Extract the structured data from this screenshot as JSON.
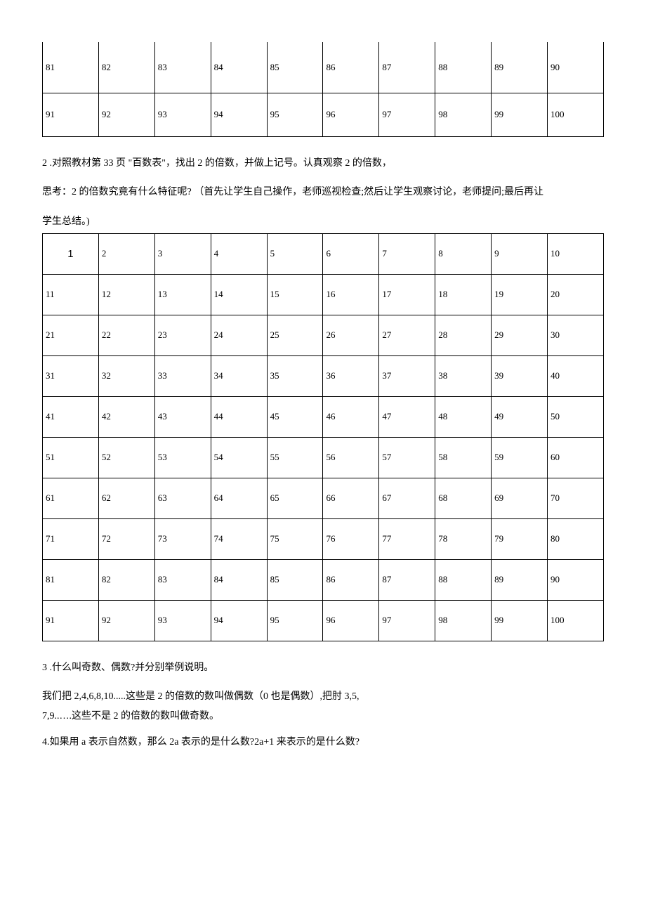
{
  "partial_table": {
    "rows": [
      [
        "81",
        "82",
        "83",
        "84",
        "85",
        "86",
        "87",
        "88",
        "89",
        "90"
      ],
      [
        "91",
        "92",
        "93",
        "94",
        "95",
        "96",
        "97",
        "98",
        "99",
        "100"
      ]
    ]
  },
  "text": {
    "p1": "2 .对照教材第 33 页 \"百数表\"，找出 2 的倍数，并做上记号。认真观察 2 的倍数，",
    "p2": "思考：2 的倍数究竟有什么特征呢? （首先让学生自己操作，老师巡视检查;然后让学生观察讨论，老师提问;最后再让",
    "p3": "学生总结。)",
    "q3_title": "3 .什么叫奇数、偶数?并分别举例说明。",
    "q3_line1": "我们把 2,4,6,8,10.....这些是 2 的倍数的数叫做偶数（0 也是偶数）,把肘 3,5,",
    "q3_line2": "7,9..….这些不是 2 的倍数的数叫做奇数。",
    "q4": "4.如果用 a 表示自然数，那么 2a 表示的是什么数?2a+1 来表示的是什么数?"
  },
  "full_table": {
    "rows": [
      [
        "1",
        "2",
        "3",
        "4",
        "5",
        "6",
        "7",
        "8",
        "9",
        "10"
      ],
      [
        "11",
        "12",
        "13",
        "14",
        "15",
        "16",
        "17",
        "18",
        "19",
        "20"
      ],
      [
        "21",
        "22",
        "23",
        "24",
        "25",
        "26",
        "27",
        "28",
        "29",
        "30"
      ],
      [
        "31",
        "32",
        "33",
        "34",
        "35",
        "36",
        "37",
        "38",
        "39",
        "40"
      ],
      [
        "41",
        "42",
        "43",
        "44",
        "45",
        "46",
        "47",
        "48",
        "49",
        "50"
      ],
      [
        "51",
        "52",
        "53",
        "54",
        "55",
        "56",
        "57",
        "58",
        "59",
        "60"
      ],
      [
        "61",
        "62",
        "63",
        "64",
        "65",
        "66",
        "67",
        "68",
        "69",
        "70"
      ],
      [
        "71",
        "72",
        "73",
        "74",
        "75",
        "76",
        "77",
        "78",
        "79",
        "80"
      ],
      [
        "81",
        "82",
        "83",
        "84",
        "85",
        "86",
        "87",
        "88",
        "89",
        "90"
      ],
      [
        "91",
        "92",
        "93",
        "94",
        "95",
        "96",
        "97",
        "98",
        "99",
        "100"
      ]
    ]
  },
  "style": {
    "columns": 10,
    "border_color": "#000000",
    "font_family": "SimSun",
    "cell_fontsize": 13,
    "body_fontsize": 14,
    "background_color": "#ffffff",
    "text_color": "#000000"
  }
}
